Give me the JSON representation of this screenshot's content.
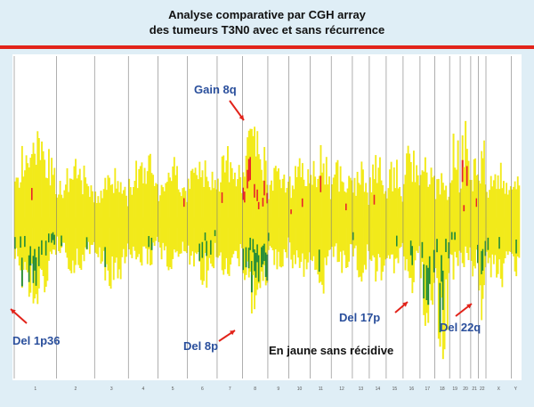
{
  "title_lines": [
    "Analyse comparative par CGH array",
    "des tumeurs T3N0 avec et sans récurrence"
  ],
  "colors": {
    "title_rule": "#e2231a",
    "no_recurrence_gain_loss": "#f2ea1a",
    "recurrence_gain": "#e8202a",
    "recurrence_loss": "#1f8a3a",
    "annotation_text": "#2a4f9c",
    "arrow": "#e2231a",
    "plot_background": "#ffffff"
  },
  "chart_data": {
    "type": "bar",
    "description_legend": "En jaune sans récidive",
    "x_ticks": [
      "1",
      "2",
      "3",
      "4",
      "5",
      "6",
      "7",
      "8",
      "9",
      "10",
      "11",
      "12",
      "13",
      "14",
      "15",
      "16",
      "17",
      "18",
      "19",
      "20",
      "21",
      "22",
      "X",
      "Y"
    ],
    "series": [
      {
        "color_key": "no_recurrence_gain_loss"
      },
      {
        "color_key": "recurrence_gain"
      },
      {
        "color_key": "recurrence_loss"
      }
    ],
    "annotations": [
      {
        "id": "gain8q",
        "label": "Gain 8q",
        "chromosome": "8",
        "direction": "gain"
      },
      {
        "id": "del1p36",
        "label": "Del 1p36",
        "chromosome": "1",
        "direction": "loss"
      },
      {
        "id": "del8p",
        "label": "Del 8p",
        "chromosome": "8",
        "direction": "loss"
      },
      {
        "id": "del17p",
        "label": "Del 17p",
        "chromosome": "17",
        "direction": "loss"
      },
      {
        "id": "del22q",
        "label": "Del 22q",
        "chromosome": "22",
        "direction": "loss"
      }
    ],
    "chromosome_profiles": [
      {
        "chr": "1",
        "gain": 0.7,
        "loss": 0.55,
        "red_gain": 0.05,
        "green_loss": 0.45
      },
      {
        "chr": "2",
        "gain": 0.45,
        "loss": 0.35,
        "red_gain": 0.0,
        "green_loss": 0.1
      },
      {
        "chr": "3",
        "gain": 0.4,
        "loss": 0.45,
        "red_gain": 0.0,
        "green_loss": 0.05
      },
      {
        "chr": "4",
        "gain": 0.55,
        "loss": 0.35,
        "red_gain": 0.0,
        "green_loss": 0.05
      },
      {
        "chr": "5",
        "gain": 0.5,
        "loss": 0.35,
        "red_gain": 0.05,
        "green_loss": 0.0
      },
      {
        "chr": "6",
        "gain": 0.55,
        "loss": 0.45,
        "red_gain": 0.0,
        "green_loss": 0.3
      },
      {
        "chr": "7",
        "gain": 0.6,
        "loss": 0.4,
        "red_gain": 0.05,
        "green_loss": 0.05
      },
      {
        "chr": "8",
        "gain": 0.75,
        "loss": 0.7,
        "red_gain": 0.65,
        "green_loss": 0.8
      },
      {
        "chr": "9",
        "gain": 0.5,
        "loss": 0.35,
        "red_gain": 0.0,
        "green_loss": 0.1
      },
      {
        "chr": "10",
        "gain": 0.55,
        "loss": 0.4,
        "red_gain": 0.05,
        "green_loss": 0.0
      },
      {
        "chr": "11",
        "gain": 0.6,
        "loss": 0.5,
        "red_gain": 0.1,
        "green_loss": 0.1
      },
      {
        "chr": "12",
        "gain": 0.5,
        "loss": 0.35,
        "red_gain": 0.05,
        "green_loss": 0.0
      },
      {
        "chr": "13",
        "gain": 0.45,
        "loss": 0.4,
        "red_gain": 0.0,
        "green_loss": 0.05
      },
      {
        "chr": "14",
        "gain": 0.55,
        "loss": 0.45,
        "red_gain": 0.05,
        "green_loss": 0.05
      },
      {
        "chr": "15",
        "gain": 0.5,
        "loss": 0.4,
        "red_gain": 0.0,
        "green_loss": 0.1
      },
      {
        "chr": "16",
        "gain": 0.6,
        "loss": 0.5,
        "red_gain": 0.05,
        "green_loss": 0.15
      },
      {
        "chr": "17",
        "gain": 0.55,
        "loss": 0.75,
        "red_gain": 0.05,
        "green_loss": 0.55
      },
      {
        "chr": "18",
        "gain": 0.45,
        "loss": 0.95,
        "red_gain": 0.0,
        "green_loss": 0.35
      },
      {
        "chr": "19",
        "gain": 0.7,
        "loss": 0.4,
        "red_gain": 0.15,
        "green_loss": 0.15
      },
      {
        "chr": "20",
        "gain": 0.75,
        "loss": 0.35,
        "red_gain": 0.2,
        "green_loss": 0.05
      },
      {
        "chr": "21",
        "gain": 0.55,
        "loss": 0.45,
        "red_gain": 0.05,
        "green_loss": 0.1
      },
      {
        "chr": "22",
        "gain": 0.7,
        "loss": 0.7,
        "red_gain": 0.1,
        "green_loss": 0.35
      },
      {
        "chr": "X",
        "gain": 0.45,
        "loss": 0.45,
        "red_gain": 0.0,
        "green_loss": 0.15
      },
      {
        "chr": "Y",
        "gain": 0.4,
        "loss": 0.5,
        "red_gain": 0.0,
        "green_loss": 0.3
      }
    ]
  }
}
